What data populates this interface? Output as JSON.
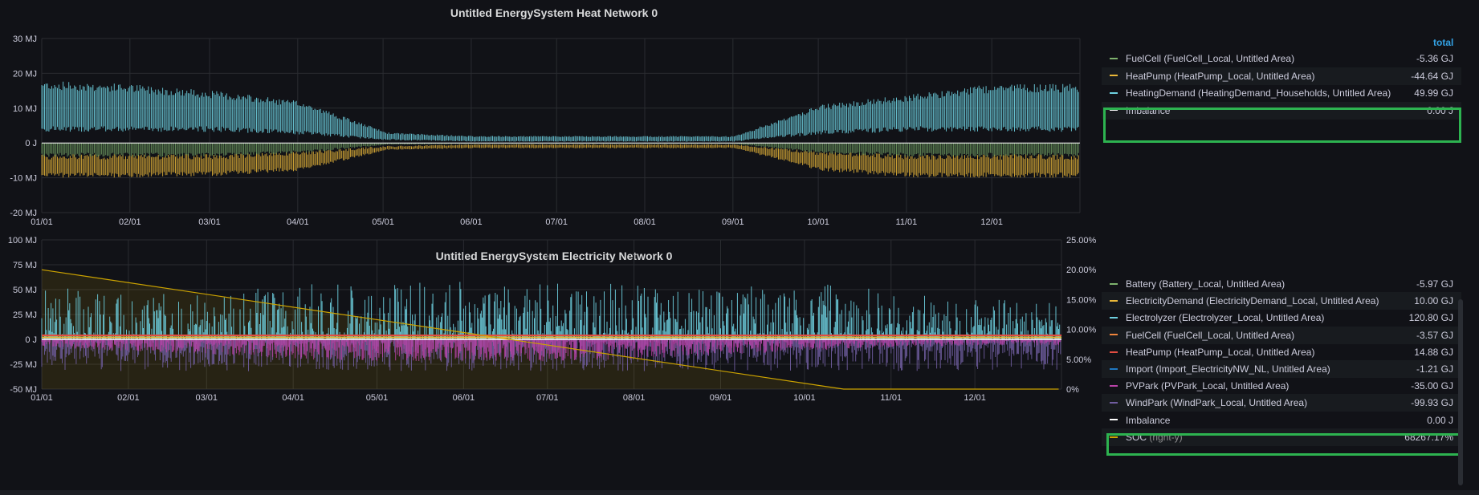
{
  "colors": {
    "background": "#111217",
    "grid": "#2a2c31",
    "axis_text": "#ccccdc",
    "highlight": "#2db350",
    "accent": "#33a2e5"
  },
  "panels": [
    {
      "title": "Untitled EnergySystem Heat Network 0",
      "legend_header": "total",
      "legend": [
        {
          "name": "FuelCell (FuelCell_Local, Untitled Area)",
          "value": "-5.36 GJ",
          "color": "#7eb26d"
        },
        {
          "name": "HeatPump (HeatPump_Local, Untitled Area)",
          "value": "-44.64 GJ",
          "color": "#eab839"
        },
        {
          "name": "HeatingDemand (HeatingDemand_Households, Untitled Area)",
          "value": "49.99 GJ",
          "color": "#6ed0e0"
        },
        {
          "name": "Imbalance",
          "value": "0.00 J",
          "color": "#ffffff"
        }
      ],
      "chart_data": {
        "type": "line",
        "title": "Untitled EnergySystem Heat Network 0",
        "x_ticks": [
          "01/01",
          "02/01",
          "03/01",
          "04/01",
          "05/01",
          "06/01",
          "07/01",
          "08/01",
          "09/01",
          "10/01",
          "11/01",
          "12/01"
        ],
        "y_ticks": [
          "30 MJ",
          "20 MJ",
          "10 MJ",
          "0 J",
          "-10 MJ",
          "-20 MJ"
        ],
        "ylim": [
          -20,
          30
        ],
        "y_unit": "MJ",
        "grid": true,
        "legend_position": "right",
        "series": [
          {
            "name": "HeatingDemand (HeatingDemand_Households, Untitled Area)",
            "envelope_by_month": {
              "months": [
                1,
                2,
                3,
                4,
                5,
                6,
                7,
                8,
                9,
                10,
                11,
                12
              ],
              "max": [
                18,
                17,
                15,
                12,
                3,
                2,
                2,
                2,
                2,
                11,
                14,
                17
              ],
              "min": [
                4,
                4,
                4,
                3,
                1,
                0.5,
                0.5,
                0.5,
                0.5,
                3,
                4,
                4
              ]
            }
          },
          {
            "name": "HeatPump (HeatPump_Local, Untitled Area)",
            "envelope_by_month": {
              "months": [
                1,
                2,
                3,
                4,
                5,
                6,
                7,
                8,
                9,
                10,
                11,
                12
              ],
              "max": [
                -4,
                -4,
                -4,
                -3,
                -1,
                -0.5,
                -0.5,
                -0.5,
                -0.5,
                -3,
                -4,
                -4
              ],
              "min": [
                -10,
                -10,
                -9.5,
                -8,
                -2,
                -1.5,
                -1.5,
                -1.5,
                -1.5,
                -8,
                -10,
                -10
              ]
            }
          },
          {
            "name": "FuelCell (FuelCell_Local, Untitled Area)",
            "envelope_by_month": {
              "months": [
                1,
                2,
                3,
                4,
                5,
                6,
                7,
                8,
                9,
                10,
                11,
                12
              ],
              "max": [
                0,
                0,
                0,
                0,
                0,
                0,
                0,
                0,
                0,
                0,
                0,
                0
              ],
              "min": [
                -4,
                -4,
                -4,
                -3,
                -0.5,
                -0.3,
                -0.3,
                -0.3,
                -0.3,
                -3,
                -4,
                -4
              ]
            }
          },
          {
            "name": "Imbalance",
            "constant": 0
          }
        ]
      }
    },
    {
      "title": "Untitled EnergySystem Electricity Network 0",
      "legend": [
        {
          "name": "Battery (Battery_Local, Untitled Area)",
          "value": "-5.97 GJ",
          "color": "#7eb26d"
        },
        {
          "name": "ElectricityDemand (ElectricityDemand_Local, Untitled Area)",
          "value": "10.00 GJ",
          "color": "#eab839"
        },
        {
          "name": "Electrolyzer (Electrolyzer_Local, Untitled Area)",
          "value": "120.80 GJ",
          "color": "#6ed0e0"
        },
        {
          "name": "FuelCell (FuelCell_Local, Untitled Area)",
          "value": "-3.57 GJ",
          "color": "#ef843c"
        },
        {
          "name": "HeatPump (HeatPump_Local, Untitled Area)",
          "value": "14.88 GJ",
          "color": "#e24d42"
        },
        {
          "name": "Import (Import_ElectricityNW_NL, Untitled Area)",
          "value": "-1.21 GJ",
          "color": "#1f78c1"
        },
        {
          "name": "PVPark (PVPark_Local, Untitled Area)",
          "value": "-35.00 GJ",
          "color": "#ba43a9"
        },
        {
          "name": "WindPark (WindPark_Local, Untitled Area)",
          "value": "-99.93 GJ",
          "color": "#705da0"
        },
        {
          "name": "Imbalance",
          "value": "0.00 J",
          "color": "#ffffff"
        },
        {
          "name": "SOC",
          "name_suffix": "(right-y)",
          "value": "68267.17%",
          "color": "#cca300"
        }
      ],
      "chart_data": {
        "type": "line",
        "title": "Untitled EnergySystem Electricity Network 0",
        "x_ticks": [
          "01/01",
          "02/01",
          "03/01",
          "04/01",
          "05/01",
          "06/01",
          "07/01",
          "08/01",
          "09/01",
          "10/01",
          "11/01",
          "12/01"
        ],
        "y_ticks": [
          "100 MJ",
          "75 MJ",
          "50 MJ",
          "25 MJ",
          "0 J",
          "-25 MJ",
          "-50 MJ"
        ],
        "ylim": [
          -50,
          100
        ],
        "y_unit": "MJ",
        "y2_ticks": [
          "25.00%",
          "20.00%",
          "15.00%",
          "10.00%",
          "5.00%",
          "0%"
        ],
        "y2lim": [
          0,
          25
        ],
        "grid": true,
        "legend_position": "right",
        "series": [
          {
            "name": "Electrolyzer (Electrolyzer_Local, Untitled Area)",
            "peaks_by_month": {
              "months": [
                1,
                2,
                3,
                4,
                5,
                6,
                7,
                8,
                9,
                10,
                11,
                12
              ],
              "max": [
                55,
                45,
                48,
                55,
                58,
                60,
                58,
                55,
                52,
                58,
                50,
                40
              ]
            }
          },
          {
            "name": "WindPark (WindPark_Local, Untitled Area)",
            "troughs_by_month": {
              "months": [
                1,
                2,
                3,
                4,
                5,
                6,
                7,
                8,
                9,
                10,
                11,
                12
              ],
              "min": [
                -32,
                -32,
                -32,
                -32,
                -32,
                -32,
                -32,
                -32,
                -32,
                -32,
                -32,
                -32
              ]
            }
          },
          {
            "name": "PVPark (PVPark_Local, Untitled Area)",
            "troughs_by_month": {
              "months": [
                1,
                2,
                3,
                4,
                5,
                6,
                7,
                8,
                9,
                10,
                11,
                12
              ],
              "min": [
                -8,
                -12,
                -15,
                -20,
                -22,
                -22,
                -22,
                -20,
                -15,
                -12,
                -8,
                -6
              ]
            }
          },
          {
            "name": "HeatPump (HeatPump_Local, Untitled Area)",
            "approx": 4
          },
          {
            "name": "ElectricityDemand (ElectricityDemand_Local, Untitled Area)",
            "approx": 2
          },
          {
            "name": "Imbalance",
            "constant": 0
          },
          {
            "name": "SOC",
            "axis": "right",
            "points": [
              {
                "x": "01/01",
                "y": 20.0
              },
              {
                "x": "10/15",
                "y": 0
              },
              {
                "x": "12/31",
                "y": 0
              }
            ]
          }
        ]
      }
    }
  ]
}
